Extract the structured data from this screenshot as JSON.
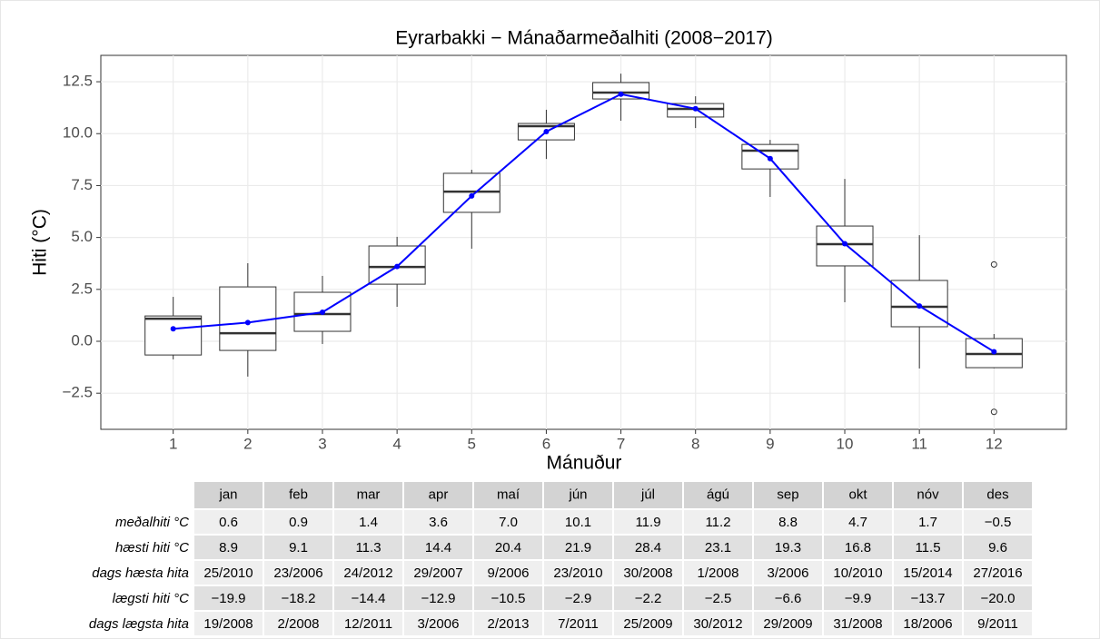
{
  "chart_data": {
    "type": "box",
    "title": "Eyrarbakki  − Mánaðarmeðalhiti (2008−2017)",
    "xlabel": "Mánuður",
    "ylabel": "Hiti (°C)",
    "x": [
      1,
      2,
      3,
      4,
      5,
      6,
      7,
      8,
      9,
      10,
      11,
      12
    ],
    "xlim": [
      0.03,
      12.97
    ],
    "xticks": [
      1,
      2,
      3,
      4,
      5,
      6,
      7,
      8,
      9,
      10,
      11,
      12
    ],
    "ylim": [
      -4.24,
      13.77
    ],
    "yticks": [
      {
        "value": -2.5,
        "label": "−2.5"
      },
      {
        "value": 0,
        "label": "0.0"
      },
      2.5,
      {
        "value": 5,
        "label": "5.0"
      },
      7.5,
      {
        "value": 10,
        "label": "10.0"
      },
      12.5
    ],
    "grid": true,
    "box_color": "#333333",
    "line_color": "#0000ff",
    "boxes": [
      {
        "min": -0.87,
        "q1": -0.66,
        "median": 1.09,
        "q3": 1.22,
        "max": 2.14,
        "outliers": []
      },
      {
        "min": -1.7,
        "q1": -0.44,
        "median": 0.39,
        "q3": 2.62,
        "max": 3.76,
        "outliers": []
      },
      {
        "min": -0.13,
        "q1": 0.48,
        "median": 1.31,
        "q3": 2.36,
        "max": 3.15,
        "outliers": []
      },
      {
        "min": 1.66,
        "q1": 2.75,
        "median": 3.58,
        "q3": 4.59,
        "max": 5.03,
        "outliers": []
      },
      {
        "min": 4.46,
        "q1": 6.21,
        "median": 7.21,
        "q3": 8.09,
        "max": 8.26,
        "outliers": []
      },
      {
        "min": 8.78,
        "q1": 9.7,
        "median": 10.36,
        "q3": 10.49,
        "max": 11.15,
        "outliers": []
      },
      {
        "min": 10.62,
        "q1": 11.67,
        "median": 11.98,
        "q3": 12.46,
        "max": 12.89,
        "outliers": []
      },
      {
        "min": 10.27,
        "q1": 10.8,
        "median": 11.19,
        "q3": 11.45,
        "max": 11.8,
        "outliers": []
      },
      {
        "min": 6.95,
        "q1": 8.3,
        "median": 9.18,
        "q3": 9.48,
        "max": 9.7,
        "outliers": []
      },
      {
        "min": 1.88,
        "q1": 3.63,
        "median": 4.68,
        "q3": 5.55,
        "max": 7.82,
        "outliers": []
      },
      {
        "min": -1.31,
        "q1": 0.7,
        "median": 1.66,
        "q3": 2.93,
        "max": 5.11,
        "outliers": []
      },
      {
        "min": -1.3,
        "q1": -1.27,
        "median": -0.61,
        "q3": 0.13,
        "max": 0.35,
        "outliers": [
          3.7,
          -3.4
        ]
      }
    ],
    "mean": [
      0.6,
      0.9,
      1.4,
      3.6,
      7.0,
      10.1,
      11.9,
      11.2,
      8.8,
      4.7,
      1.7,
      -0.5
    ]
  },
  "table": {
    "columns": [
      "jan",
      "feb",
      "mar",
      "apr",
      "maí",
      "jún",
      "júl",
      "ágú",
      "sep",
      "okt",
      "nóv",
      "des"
    ],
    "rows": [
      {
        "label": "meðalhiti °C",
        "values": [
          "0.6",
          "0.9",
          "1.4",
          "3.6",
          "7.0",
          "10.1",
          "11.9",
          "11.2",
          "8.8",
          "4.7",
          "1.7",
          "−0.5"
        ]
      },
      {
        "label": "hæsti hiti °C",
        "values": [
          "8.9",
          "9.1",
          "11.3",
          "14.4",
          "20.4",
          "21.9",
          "28.4",
          "23.1",
          "19.3",
          "16.8",
          "11.5",
          "9.6"
        ]
      },
      {
        "label": "dags hæsta hita",
        "values": [
          "25/2010",
          "23/2006",
          "24/2012",
          "29/2007",
          "9/2006",
          "23/2010",
          "30/2008",
          "1/2008",
          "3/2006",
          "10/2010",
          "15/2014",
          "27/2016"
        ]
      },
      {
        "label": "lægsti hiti °C",
        "values": [
          "−19.9",
          "−18.2",
          "−14.4",
          "−12.9",
          "−10.5",
          "−2.9",
          "−2.2",
          "−2.5",
          "−6.6",
          "−9.9",
          "−13.7",
          "−20.0"
        ]
      },
      {
        "label": "dags lægsta hita",
        "values": [
          "19/2008",
          "2/2008",
          "12/2011",
          "3/2006",
          "2/2013",
          "7/2011",
          "25/2009",
          "30/2012",
          "29/2009",
          "31/2008",
          "18/2006",
          "9/2011"
        ]
      }
    ]
  }
}
